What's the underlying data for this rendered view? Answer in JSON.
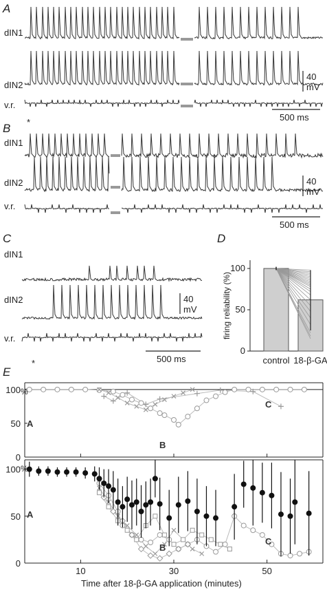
{
  "panels": {
    "A": {
      "label": "A",
      "traces": [
        "dIN1",
        "dIN2",
        "v.r."
      ],
      "scale_v": "40",
      "scale_unit": "mV",
      "scale_t": "500 ms",
      "marker": "*"
    },
    "B": {
      "label": "B",
      "traces": [
        "dIN1",
        "dIN2",
        "v.r."
      ],
      "scale_v": "40",
      "scale_unit": "mV",
      "scale_t": "500 ms"
    },
    "C": {
      "label": "C",
      "traces": [
        "dIN1",
        "dIN2",
        "v.r."
      ],
      "scale_v": "40",
      "scale_unit": "mV",
      "scale_t": "500 ms",
      "marker": "*"
    },
    "D": {
      "label": "D"
    },
    "E": {
      "label": "E",
      "pct_label": "%",
      "xlabel": "Time after 18-β-GA application (minutes)",
      "annot_top": [
        "C",
        "A",
        "B"
      ],
      "annot_bottom": [
        "A",
        "B",
        "C"
      ]
    }
  },
  "chart_data": [
    {
      "type": "bar",
      "panel": "D",
      "ylabel": "firing reliability (%)",
      "categories": [
        "control",
        "18-β-GA"
      ],
      "values": [
        100,
        62
      ],
      "ylim": [
        0,
        110
      ],
      "yticks": [
        0,
        50,
        100
      ],
      "paired_lines_end_values": [
        98,
        96,
        94,
        92,
        90,
        88,
        86,
        84,
        82,
        80,
        78,
        75,
        72,
        68,
        62,
        55,
        48,
        40,
        32,
        22,
        18,
        15
      ]
    },
    {
      "type": "scatter",
      "panel": "E-top",
      "xlim": [
        -2,
        62
      ],
      "ylim": [
        0,
        110
      ],
      "yticks": [
        0,
        50,
        100
      ],
      "xticks": [
        10,
        30,
        50
      ],
      "series_open": [
        [
          -1,
          100
        ],
        [
          2,
          100
        ],
        [
          5,
          100
        ],
        [
          8,
          100
        ],
        [
          11,
          100
        ],
        [
          14,
          99
        ],
        [
          17,
          97
        ],
        [
          19,
          92
        ],
        [
          21,
          85
        ],
        [
          23,
          80
        ],
        [
          25,
          72
        ],
        [
          27,
          65
        ],
        [
          28,
          62
        ],
        [
          30,
          55
        ],
        [
          31,
          48
        ],
        [
          33,
          60
        ],
        [
          35,
          72
        ],
        [
          37,
          84
        ],
        [
          39,
          90
        ],
        [
          41,
          96
        ],
        [
          43,
          100
        ],
        [
          46,
          100
        ],
        [
          49,
          100
        ],
        [
          52,
          100
        ],
        [
          55,
          100
        ],
        [
          58,
          100
        ]
      ],
      "series_x": [
        [
          14,
          100
        ],
        [
          16,
          95
        ],
        [
          18,
          88
        ],
        [
          20,
          80
        ],
        [
          22,
          75
        ],
        [
          24,
          70
        ],
        [
          26,
          78
        ],
        [
          28,
          85
        ],
        [
          30,
          90
        ],
        [
          32,
          95
        ],
        [
          34,
          100
        ]
      ],
      "series_plus": [
        [
          15,
          90
        ],
        [
          17,
          83
        ],
        [
          20,
          95
        ],
        [
          24,
          78
        ],
        [
          27,
          86
        ],
        [
          35,
          94
        ],
        [
          40,
          99
        ],
        [
          47,
          97
        ],
        [
          53,
          75
        ]
      ]
    },
    {
      "type": "scatter",
      "panel": "E-bottom",
      "xlim": [
        -2,
        62
      ],
      "ylim": [
        0,
        110
      ],
      "yticks": [
        0,
        50,
        100
      ],
      "xticks": [
        10,
        30,
        50
      ],
      "mean": [
        [
          -1,
          100
        ],
        [
          1,
          98
        ],
        [
          3,
          98
        ],
        [
          5,
          97
        ],
        [
          7,
          97
        ],
        [
          9,
          97
        ],
        [
          11,
          96
        ],
        [
          13,
          95
        ],
        [
          14,
          90
        ],
        [
          15,
          85
        ],
        [
          16,
          82
        ],
        [
          17,
          78
        ],
        [
          18,
          65
        ],
        [
          19,
          60
        ],
        [
          20,
          68
        ],
        [
          21,
          62
        ],
        [
          22,
          65
        ],
        [
          23,
          55
        ],
        [
          24,
          62
        ],
        [
          25,
          65
        ],
        [
          26,
          90
        ],
        [
          27,
          63
        ],
        [
          29,
          48
        ],
        [
          31,
          62
        ],
        [
          33,
          66
        ],
        [
          35,
          55
        ],
        [
          37,
          50
        ],
        [
          39,
          48
        ],
        [
          43,
          60
        ],
        [
          45,
          84
        ],
        [
          47,
          80
        ],
        [
          49,
          75
        ],
        [
          51,
          72
        ],
        [
          53,
          52
        ],
        [
          55,
          50
        ],
        [
          56,
          65
        ],
        [
          59,
          53
        ]
      ],
      "err": [
        8,
        5,
        5,
        5,
        5,
        5,
        6,
        8,
        12,
        15,
        18,
        20,
        25,
        22,
        24,
        26,
        25,
        28,
        25,
        25,
        20,
        28,
        30,
        30,
        32,
        35,
        32,
        30,
        35,
        25,
        40,
        32,
        35,
        45,
        40,
        45,
        45
      ],
      "indiv_open": [
        [
          14,
          85
        ],
        [
          16,
          72
        ],
        [
          18,
          55
        ],
        [
          19,
          40
        ],
        [
          21,
          30
        ],
        [
          23,
          25
        ],
        [
          25,
          22
        ],
        [
          27,
          30
        ],
        [
          29,
          25
        ],
        [
          31,
          15
        ],
        [
          33,
          20
        ],
        [
          35,
          25
        ],
        [
          37,
          18
        ],
        [
          39,
          12
        ],
        [
          41,
          20
        ],
        [
          43,
          50
        ],
        [
          45,
          40
        ],
        [
          47,
          35
        ],
        [
          49,
          30
        ],
        [
          51,
          20
        ],
        [
          53,
          10
        ],
        [
          55,
          8
        ],
        [
          57,
          10
        ],
        [
          59,
          12
        ]
      ],
      "indiv_x": [
        [
          14,
          80
        ],
        [
          16,
          65
        ],
        [
          18,
          50
        ],
        [
          20,
          40
        ],
        [
          22,
          30
        ],
        [
          24,
          18
        ],
        [
          26,
          10
        ],
        [
          28,
          20
        ],
        [
          30,
          35
        ],
        [
          32,
          25
        ],
        [
          34,
          15
        ],
        [
          36,
          10
        ]
      ],
      "indiv_square": [
        [
          14,
          75
        ],
        [
          16,
          60
        ],
        [
          18,
          45
        ],
        [
          20,
          35
        ],
        [
          22,
          25
        ],
        [
          24,
          40
        ],
        [
          26,
          50
        ],
        [
          28,
          30
        ],
        [
          30,
          20
        ],
        [
          32,
          25
        ],
        [
          34,
          35
        ],
        [
          36,
          30
        ],
        [
          38,
          25
        ],
        [
          40,
          20
        ],
        [
          42,
          15
        ]
      ],
      "indiv_diamond": [
        [
          15,
          70
        ],
        [
          17,
          55
        ],
        [
          19,
          45
        ],
        [
          21,
          30
        ],
        [
          23,
          15
        ],
        [
          25,
          8
        ],
        [
          27,
          5
        ],
        [
          29,
          10
        ],
        [
          31,
          15
        ],
        [
          33,
          20
        ]
      ]
    }
  ]
}
